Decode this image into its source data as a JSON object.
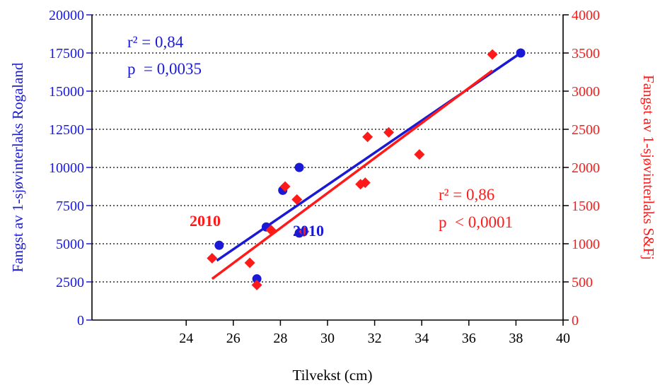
{
  "chart_data": {
    "type": "scatter",
    "xlabel": "Tilvekst (cm)",
    "ylabel_left": "Fangst av 1-sjøvinterlaks Rogaland",
    "ylabel_right": "Fangst av 1-sjøvinterlaks S&Fj",
    "xlim": [
      20,
      40
    ],
    "ylim_left": [
      0,
      20000
    ],
    "ylim_right": [
      0,
      4000
    ],
    "x_ticks": [
      "24",
      "26",
      "28",
      "30",
      "32",
      "34",
      "36",
      "38",
      "40"
    ],
    "y_left_ticks": [
      "0",
      "2500",
      "5000",
      "7500",
      "10000",
      "12500",
      "15000",
      "17500",
      "20000"
    ],
    "y_right_ticks": [
      "0",
      "500",
      "1000",
      "1500",
      "2000",
      "2500",
      "3000",
      "3500",
      "4000"
    ],
    "grid": "horizontal dotted",
    "colors": {
      "left": "#1a1ad6",
      "right": "#ff1a1a"
    },
    "series": [
      {
        "axis": "left",
        "marker": "circle",
        "points": [
          {
            "x": 25.4,
            "y": 4900
          },
          {
            "x": 27.0,
            "y": 2700
          },
          {
            "x": 27.4,
            "y": 6100
          },
          {
            "x": 28.1,
            "y": 8500
          },
          {
            "x": 28.8,
            "y": 10000
          },
          {
            "x": 28.8,
            "y": 5700
          },
          {
            "x": 38.2,
            "y": 17500
          }
        ],
        "fit": {
          "x0": 25.3,
          "y0": 3900,
          "x1": 38.2,
          "y1": 17500
        },
        "stats": [
          "r² = 0,84",
          "p  = 0,0035"
        ],
        "highlight_label": "2010"
      },
      {
        "axis": "right",
        "marker": "diamond",
        "points": [
          {
            "x": 25.1,
            "y": 810
          },
          {
            "x": 26.7,
            "y": 750
          },
          {
            "x": 27.0,
            "y": 460
          },
          {
            "x": 27.6,
            "y": 1180
          },
          {
            "x": 28.2,
            "y": 1750
          },
          {
            "x": 28.7,
            "y": 1580
          },
          {
            "x": 29.0,
            "y": 1160
          },
          {
            "x": 31.4,
            "y": 1780
          },
          {
            "x": 31.6,
            "y": 1800
          },
          {
            "x": 31.7,
            "y": 2400
          },
          {
            "x": 32.6,
            "y": 2460
          },
          {
            "x": 33.9,
            "y": 2170
          },
          {
            "x": 37.0,
            "y": 3480
          }
        ],
        "fit": {
          "x0": 25.1,
          "y0": 540,
          "x1": 37.0,
          "y1": 3270
        },
        "stats": [
          "r² = 0,86",
          "p  < 0,0001"
        ],
        "highlight_label": "2010"
      }
    ]
  }
}
